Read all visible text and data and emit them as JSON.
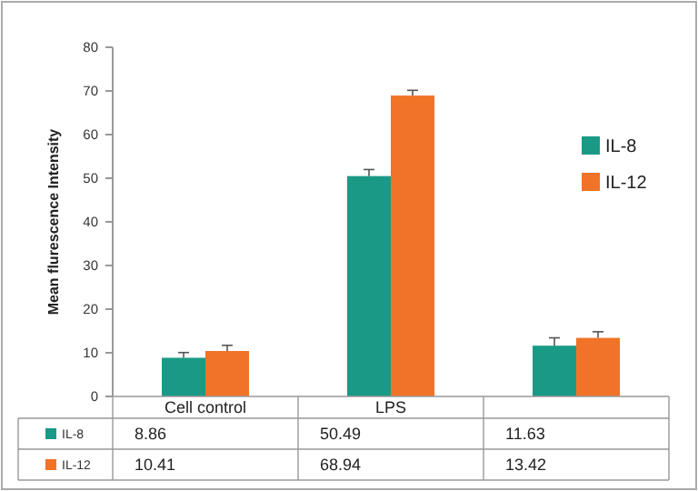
{
  "chart_data": {
    "type": "bar",
    "ylabel": "Mean flurescence Intensity",
    "categories": [
      "Cell control",
      "LPS",
      null
    ],
    "series": [
      {
        "name": "IL-8",
        "color": "#1a9a86",
        "values": [
          8.86,
          50.49,
          11.63
        ],
        "errors": [
          1.2,
          1.5,
          1.8
        ],
        "value_labels": [
          "8.86",
          "50.49",
          "11.63"
        ]
      },
      {
        "name": "IL-12",
        "color": "#f07328",
        "values": [
          10.41,
          68.94,
          13.42
        ],
        "errors": [
          1.3,
          1.2,
          1.4
        ],
        "value_labels": [
          "10.41",
          "68.94",
          "13.42"
        ]
      }
    ],
    "ylim": [
      0,
      80
    ],
    "yticks": [
      0,
      10,
      20,
      30,
      40,
      50,
      60,
      70,
      80
    ],
    "grid": false,
    "legend": "right"
  }
}
